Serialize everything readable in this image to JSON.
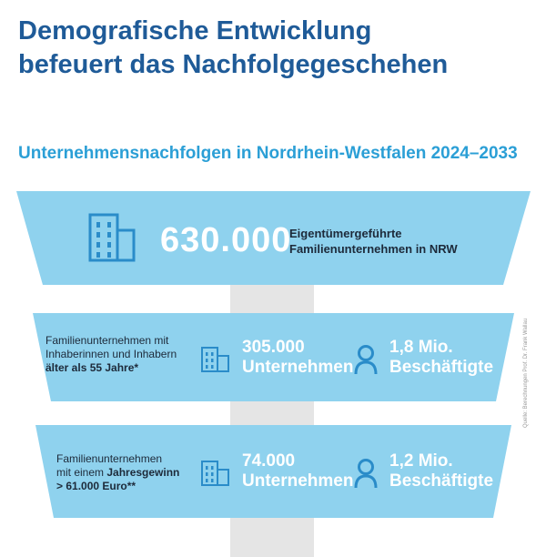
{
  "title_line1": "Demografische Entwicklung",
  "title_line2": "befeuert das Nachfolgegeschehen",
  "subtitle": "Unternehmensnachfolgen in Nordrhein-Westfalen 2024–2033",
  "top": {
    "value": "630.000",
    "label_line1": "Eigentümergeführte",
    "label_line2": "Familienunternehmen in NRW"
  },
  "row1": {
    "desc_line1": "Familienunternehmen mit",
    "desc_line2": "Inhaberinnen und Inhabern",
    "desc_line3": "älter als 55 Jahre*",
    "companies_value": "305.000",
    "companies_label": "Unternehmen",
    "employees_value": "1,8 Mio.",
    "employees_label": "Beschäftigte"
  },
  "row2": {
    "desc_line1": "Familienunternehmen",
    "desc_line2_prefix": "mit einem ",
    "desc_line2_bold": "Jahresgewinn",
    "desc_line3": "> 61.000 Euro**",
    "companies_value": "74.000",
    "companies_label": "Unternehmen",
    "employees_value": "1,2 Mio.",
    "employees_label": "Beschäftigte"
  },
  "source": "Quelle: Berechnungen Prof. Dr. Frank Wallau",
  "colors": {
    "title": "#1f5b98",
    "subtitle": "#2b9fd6",
    "band": "#8fd2ee",
    "icon": "#2a8cc9",
    "stem": "#e5e5e5"
  },
  "icons": [
    "building-icon",
    "person-icon"
  ]
}
